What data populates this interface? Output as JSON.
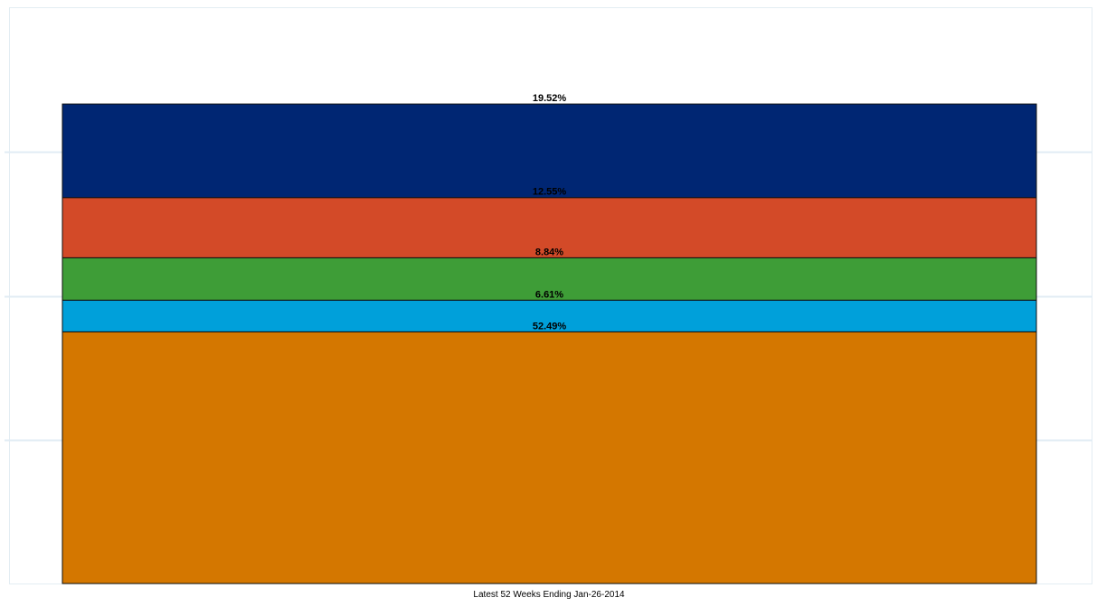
{
  "chart_data": {
    "type": "bar",
    "stacked": true,
    "categories": [
      "Latest 52 Weeks Ending Jan-26-2014"
    ],
    "ylim": [
      0,
      120
    ],
    "grid": true,
    "series": [
      {
        "values": [
          52.49
        ],
        "label": "52.49%",
        "color": "#D47700"
      },
      {
        "values": [
          6.61
        ],
        "label": "6.61%",
        "color": "#00A0DA"
      },
      {
        "values": [
          8.84
        ],
        "label": "8.84%",
        "color": "#3E9D37"
      },
      {
        "values": [
          12.55
        ],
        "label": "12.55%",
        "color": "#D34A28"
      },
      {
        "values": [
          19.52
        ],
        "label": "19.52%",
        "color": "#002673"
      }
    ]
  }
}
